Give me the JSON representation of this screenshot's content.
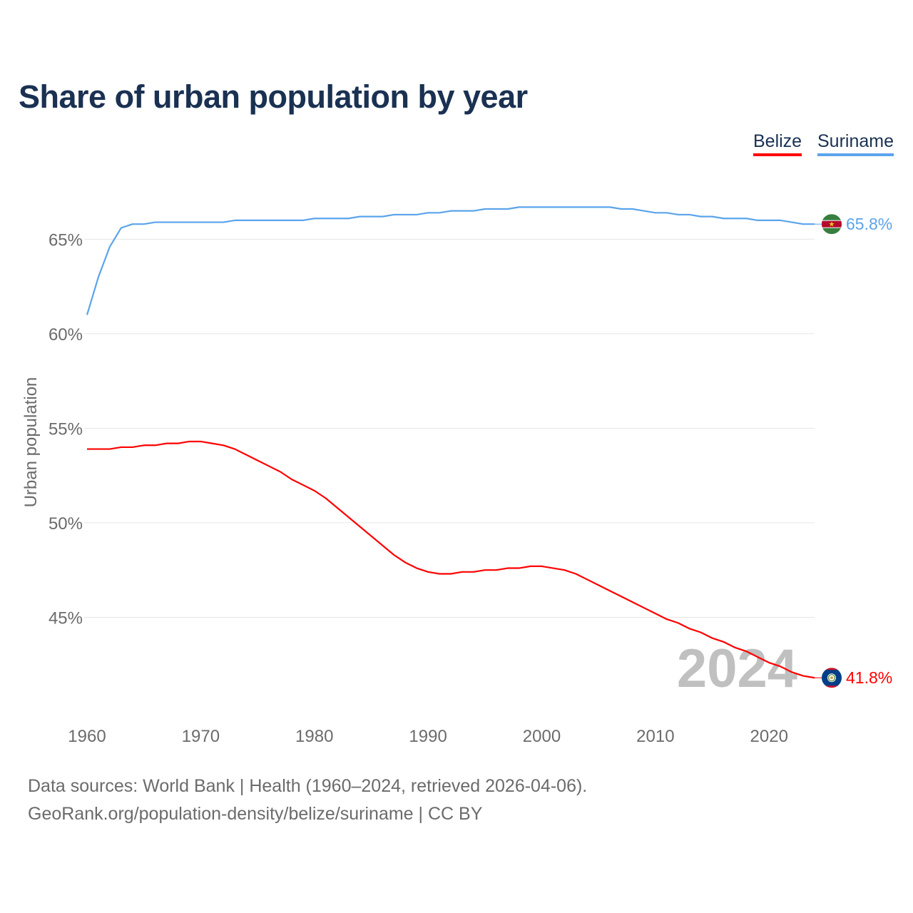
{
  "chart_data": {
    "type": "line",
    "title": "Share of urban population by year",
    "xlabel": "",
    "ylabel": "Urban population",
    "xlim": [
      1960,
      2024
    ],
    "ylim": [
      40.3,
      68.6
    ],
    "x_ticks": [
      1960,
      1970,
      1980,
      1990,
      2000,
      2010,
      2020
    ],
    "x_tick_labels": [
      "1960",
      "1970",
      "1980",
      "1990",
      "2000",
      "2010",
      "2020"
    ],
    "y_ticks": [
      45,
      50,
      55,
      60,
      65
    ],
    "y_tick_labels": [
      "45%",
      "50%",
      "55%",
      "60%",
      "65%"
    ],
    "grid": true,
    "legend_position": "top-right",
    "year_watermark": "2024",
    "x": [
      1960,
      1961,
      1962,
      1963,
      1964,
      1965,
      1966,
      1967,
      1968,
      1969,
      1970,
      1971,
      1972,
      1973,
      1974,
      1975,
      1976,
      1977,
      1978,
      1979,
      1980,
      1981,
      1982,
      1983,
      1984,
      1985,
      1986,
      1987,
      1988,
      1989,
      1990,
      1991,
      1992,
      1993,
      1994,
      1995,
      1996,
      1997,
      1998,
      1999,
      2000,
      2001,
      2002,
      2003,
      2004,
      2005,
      2006,
      2007,
      2008,
      2009,
      2010,
      2011,
      2012,
      2013,
      2014,
      2015,
      2016,
      2017,
      2018,
      2019,
      2020,
      2021,
      2022,
      2023,
      2024
    ],
    "series": [
      {
        "name": "Belize",
        "color": "#ff0000",
        "end_label": "41.8%",
        "values": [
          53.9,
          53.9,
          53.9,
          54.0,
          54.0,
          54.1,
          54.1,
          54.2,
          54.2,
          54.3,
          54.3,
          54.2,
          54.1,
          53.9,
          53.6,
          53.3,
          53.0,
          52.7,
          52.3,
          52.0,
          51.7,
          51.3,
          50.8,
          50.3,
          49.8,
          49.3,
          48.8,
          48.3,
          47.9,
          47.6,
          47.4,
          47.3,
          47.3,
          47.4,
          47.4,
          47.5,
          47.5,
          47.6,
          47.6,
          47.7,
          47.7,
          47.6,
          47.5,
          47.3,
          47.0,
          46.7,
          46.4,
          46.1,
          45.8,
          45.5,
          45.2,
          44.9,
          44.7,
          44.4,
          44.2,
          43.9,
          43.7,
          43.4,
          43.2,
          42.9,
          42.6,
          42.4,
          42.1,
          41.9,
          41.8
        ]
      },
      {
        "name": "Suriname",
        "color": "#5ba4eb",
        "end_label": "65.8%",
        "values": [
          61.0,
          63.0,
          64.6,
          65.6,
          65.8,
          65.8,
          65.9,
          65.9,
          65.9,
          65.9,
          65.9,
          65.9,
          65.9,
          66.0,
          66.0,
          66.0,
          66.0,
          66.0,
          66.0,
          66.0,
          66.1,
          66.1,
          66.1,
          66.1,
          66.2,
          66.2,
          66.2,
          66.3,
          66.3,
          66.3,
          66.4,
          66.4,
          66.5,
          66.5,
          66.5,
          66.6,
          66.6,
          66.6,
          66.7,
          66.7,
          66.7,
          66.7,
          66.7,
          66.7,
          66.7,
          66.7,
          66.7,
          66.6,
          66.6,
          66.5,
          66.4,
          66.4,
          66.3,
          66.3,
          66.2,
          66.2,
          66.1,
          66.1,
          66.1,
          66.0,
          66.0,
          66.0,
          65.9,
          65.8,
          65.8
        ]
      }
    ]
  },
  "footer": {
    "sources": "Data sources: World Bank | Health (1960–2024, retrieved 2026-04-06).",
    "attribution": "GeoRank.org/population-density/belize/suriname | CC BY"
  }
}
